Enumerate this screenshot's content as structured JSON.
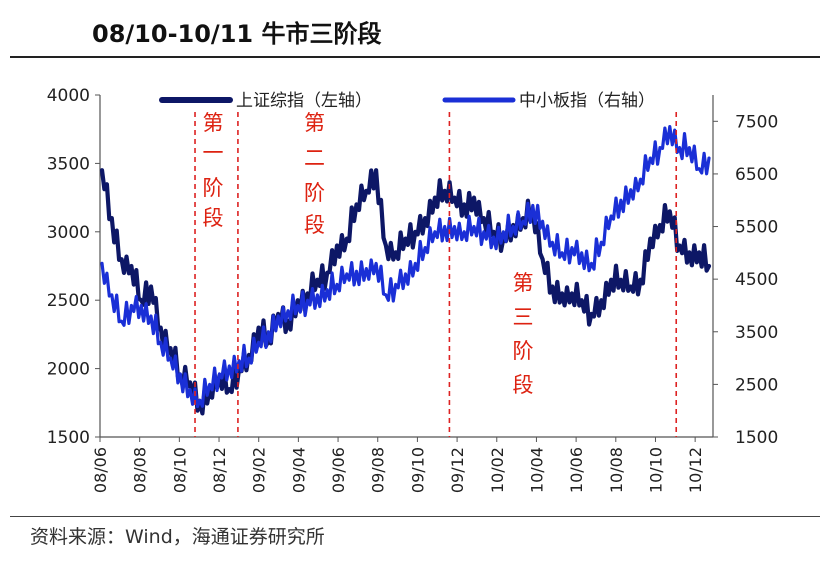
{
  "title": "08/10-10/11 牛市三阶段",
  "source": "资料来源：Wind，海通证券研究所",
  "chart_data": {
    "type": "line",
    "y_left": {
      "min": 1500,
      "max": 4000,
      "ticks": [
        1500,
        2000,
        2500,
        3000,
        3500,
        4000
      ]
    },
    "y_right": {
      "min": 1500,
      "max": 8000,
      "ticks": [
        1500,
        2500,
        3500,
        4500,
        5500,
        6500,
        7500
      ]
    },
    "x_ticks": [
      "08/06",
      "08/08",
      "08/10",
      "08/12",
      "09/02",
      "09/04",
      "09/06",
      "09/08",
      "09/10",
      "09/12",
      "10/02",
      "10/04",
      "10/06",
      "10/08",
      "10/10",
      "10/12"
    ],
    "legend": {
      "position": "top"
    },
    "series": [
      {
        "name": "上证综指（左轴）",
        "axis": "left",
        "color": "#0d1766",
        "points": [
          [
            "08/06",
            3450
          ],
          [
            "08/06a",
            3100
          ],
          [
            "08/07",
            2800
          ],
          [
            "08/07a",
            2750
          ],
          [
            "08/08",
            2500
          ],
          [
            "08/08a",
            2600
          ],
          [
            "08/09",
            2300
          ],
          [
            "08/09a",
            2150
          ],
          [
            "08/10",
            1950
          ],
          [
            "08/10a",
            1900
          ],
          [
            "08/11",
            1750
          ],
          [
            "08/11a",
            1850
          ],
          [
            "08/12",
            1950
          ],
          [
            "08/12a",
            1850
          ],
          [
            "09/01",
            2000
          ],
          [
            "09/01a",
            2100
          ],
          [
            "09/02",
            2300
          ],
          [
            "09/02a",
            2200
          ],
          [
            "09/03",
            2400
          ],
          [
            "09/03a",
            2350
          ],
          [
            "09/04",
            2500
          ],
          [
            "09/04a",
            2550
          ],
          [
            "09/05",
            2650
          ],
          [
            "09/05a",
            2700
          ],
          [
            "09/06",
            2900
          ],
          [
            "09/06a",
            2950
          ],
          [
            "09/07",
            3200
          ],
          [
            "09/07a",
            3300
          ],
          [
            "09/08",
            3450
          ],
          [
            "09/08a",
            2900
          ],
          [
            "09/09",
            2850
          ],
          [
            "09/09a",
            2950
          ],
          [
            "09/10",
            3000
          ],
          [
            "09/10a",
            3100
          ],
          [
            "09/11",
            3250
          ],
          [
            "09/11a",
            3300
          ],
          [
            "09/12",
            3250
          ],
          [
            "09/12a",
            3200
          ],
          [
            "10/01",
            3250
          ],
          [
            "10/01a",
            3100
          ],
          [
            "10/02",
            3000
          ],
          [
            "10/02a",
            2950
          ],
          [
            "10/03",
            3050
          ],
          [
            "10/03a",
            3100
          ],
          [
            "10/04",
            3150
          ],
          [
            "10/04a",
            2800
          ],
          [
            "10/05",
            2600
          ],
          [
            "10/05a",
            2550
          ],
          [
            "10/06",
            2550
          ],
          [
            "10/06a",
            2500
          ],
          [
            "10/07",
            2400
          ],
          [
            "10/07a",
            2500
          ],
          [
            "10/08",
            2650
          ],
          [
            "10/08a",
            2650
          ],
          [
            "10/09",
            2600
          ],
          [
            "10/09a",
            2650
          ],
          [
            "10/10",
            2950
          ],
          [
            "10/10a",
            3050
          ],
          [
            "10/11",
            3150
          ],
          [
            "10/11a",
            2900
          ],
          [
            "10/12",
            2850
          ],
          [
            "10/12a",
            2850
          ],
          [
            "10/12b",
            2750
          ]
        ]
      },
      {
        "name": "中小板指（右轴）",
        "axis": "right",
        "color": "#1a2fd6",
        "points": [
          [
            "08/06",
            4800
          ],
          [
            "08/06a",
            4200
          ],
          [
            "08/07",
            3700
          ],
          [
            "08/07a",
            4000
          ],
          [
            "08/08",
            4000
          ],
          [
            "08/08a",
            3800
          ],
          [
            "08/09",
            3300
          ],
          [
            "08/09a",
            3000
          ],
          [
            "08/10",
            2700
          ],
          [
            "08/10a",
            2400
          ],
          [
            "08/11",
            2200
          ],
          [
            "08/11a",
            2500
          ],
          [
            "08/12",
            2700
          ],
          [
            "08/12a",
            2850
          ],
          [
            "09/01",
            2950
          ],
          [
            "09/01a",
            3000
          ],
          [
            "09/02",
            3300
          ],
          [
            "09/02a",
            3500
          ],
          [
            "09/03",
            3800
          ],
          [
            "09/03a",
            3900
          ],
          [
            "09/04",
            4000
          ],
          [
            "09/04a",
            4100
          ],
          [
            "09/05",
            4200
          ],
          [
            "09/05a",
            4300
          ],
          [
            "09/06",
            4400
          ],
          [
            "09/06a",
            4600
          ],
          [
            "09/07",
            4650
          ],
          [
            "09/07a",
            4700
          ],
          [
            "09/08",
            4800
          ],
          [
            "09/08a",
            4200
          ],
          [
            "09/09",
            4400
          ],
          [
            "09/09a",
            4600
          ],
          [
            "09/10",
            4800
          ],
          [
            "09/10a",
            5100
          ],
          [
            "09/11",
            5400
          ],
          [
            "09/11a",
            5500
          ],
          [
            "09/12",
            5500
          ],
          [
            "09/12a",
            5400
          ],
          [
            "10/01",
            5500
          ],
          [
            "10/01a",
            5400
          ],
          [
            "10/02",
            5300
          ],
          [
            "10/02a",
            5400
          ],
          [
            "10/03",
            5500
          ],
          [
            "10/03a",
            5600
          ],
          [
            "10/04",
            5900
          ],
          [
            "10/04a",
            5600
          ],
          [
            "10/05",
            5200
          ],
          [
            "10/05a",
            5000
          ],
          [
            "10/06",
            5100
          ],
          [
            "10/06a",
            5000
          ],
          [
            "10/07",
            4800
          ],
          [
            "10/07a",
            5200
          ],
          [
            "10/08",
            5700
          ],
          [
            "10/08a",
            6000
          ],
          [
            "10/09",
            6200
          ],
          [
            "10/09a",
            6400
          ],
          [
            "10/10",
            6800
          ],
          [
            "10/10a",
            7000
          ],
          [
            "10/11",
            7400
          ],
          [
            "10/11a",
            7000
          ],
          [
            "10/12",
            7000
          ],
          [
            "10/12a",
            6600
          ],
          [
            "10/12b",
            6800
          ]
        ]
      }
    ],
    "annotations": [
      {
        "text": "第一阶段",
        "x_fraction": 0.155
      },
      {
        "text": "第二阶段",
        "x_fraction": 0.35
      },
      {
        "text": "第三阶段",
        "x_fraction": 0.69
      }
    ],
    "stage_lines": [
      0.155,
      0.225,
      0.57,
      0.94
    ]
  }
}
